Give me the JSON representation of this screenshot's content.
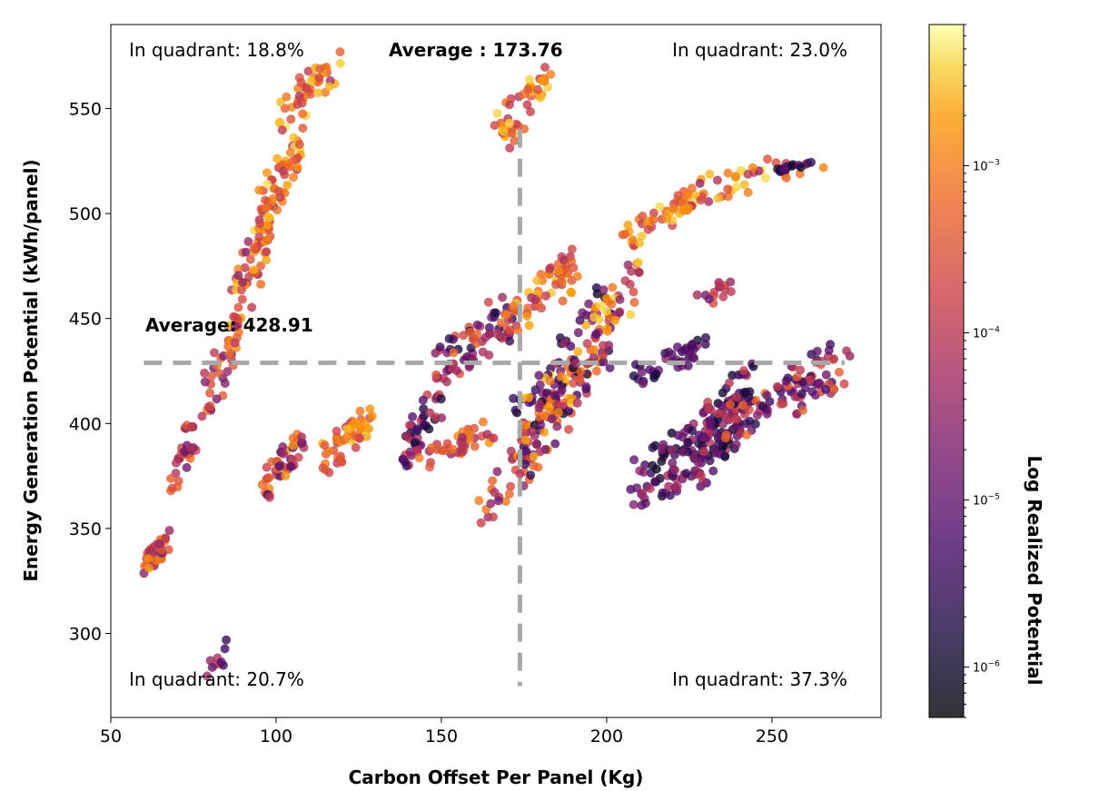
{
  "chart_data": {
    "type": "scatter",
    "xlabel": "Carbon Offset Per Panel (Kg)",
    "ylabel": "Energy Generation Potential (kWh/panel)",
    "colorbar_label": "Log Realized Potential",
    "colormap": "inferno",
    "colorbar_scale": "log",
    "xlim": [
      50,
      283
    ],
    "ylim": [
      260,
      590
    ],
    "xticks": [
      50,
      100,
      150,
      200,
      250
    ],
    "yticks": [
      300,
      350,
      400,
      450,
      500,
      550
    ],
    "colorbar_ticks": [
      {
        "base": "10",
        "exp": "−6",
        "value": 1e-06
      },
      {
        "base": "10",
        "exp": "−5",
        "value": 1e-05
      },
      {
        "base": "10",
        "exp": "−4",
        "value": 0.0001
      },
      {
        "base": "10",
        "exp": "−3",
        "value": 0.001
      }
    ],
    "colorbar_range": [
      5e-07,
      0.007
    ],
    "average_x": {
      "value": 173.76,
      "label": "Average : 173.76"
    },
    "average_y": {
      "value": 428.91,
      "label": "Average: 428.91"
    },
    "quadrants": {
      "top_left": "In quadrant: 18.8%",
      "top_right": "In quadrant: 23.0%",
      "bottom_left": "In quadrant: 20.7%",
      "bottom_right": "In quadrant: 37.3%"
    },
    "grid": false,
    "clusters": [
      {
        "x": [
          60,
          68
        ],
        "y": [
          328,
          350
        ],
        "cmin": 0.35,
        "cmax": 0.85,
        "n": 45
      },
      {
        "x": [
          68,
          76
        ],
        "y": [
          362,
          408
        ],
        "cmin": 0.3,
        "cmax": 0.75,
        "n": 30
      },
      {
        "x": [
          78,
          88
        ],
        "y": [
          400,
          450
        ],
        "cmin": 0.35,
        "cmax": 0.85,
        "n": 35
      },
      {
        "x": [
          86,
          98
        ],
        "y": [
          440,
          500
        ],
        "cmin": 0.4,
        "cmax": 0.95,
        "n": 60
      },
      {
        "x": [
          96,
          108
        ],
        "y": [
          495,
          540
        ],
        "cmin": 0.55,
        "cmax": 0.98,
        "n": 55
      },
      {
        "x": [
          101,
          118
        ],
        "y": [
          540,
          576
        ],
        "cmin": 0.5,
        "cmax": 0.98,
        "n": 45
      },
      {
        "x": [
          96,
          108
        ],
        "y": [
          366,
          395
        ],
        "cmin": 0.25,
        "cmax": 0.9,
        "n": 45
      },
      {
        "x": [
          113,
          128
        ],
        "y": [
          376,
          405
        ],
        "cmin": 0.55,
        "cmax": 0.95,
        "n": 50
      },
      {
        "x": [
          78,
          87
        ],
        "y": [
          276,
          298
        ],
        "cmin": 0.2,
        "cmax": 0.6,
        "n": 10
      },
      {
        "x": [
          138,
          150
        ],
        "y": [
          378,
          420
        ],
        "cmin": 0.1,
        "cmax": 0.6,
        "n": 45
      },
      {
        "x": [
          145,
          165
        ],
        "y": [
          380,
          400
        ],
        "cmin": 0.45,
        "cmax": 0.85,
        "n": 40
      },
      {
        "x": [
          148,
          172
        ],
        "y": [
          420,
          460
        ],
        "cmin": 0.1,
        "cmax": 0.75,
        "n": 70
      },
      {
        "x": [
          163,
          178
        ],
        "y": [
          350,
          400
        ],
        "cmin": 0.35,
        "cmax": 0.8,
        "n": 30
      },
      {
        "x": [
          167,
          182
        ],
        "y": [
          530,
          570
        ],
        "cmin": 0.55,
        "cmax": 0.95,
        "n": 45
      },
      {
        "x": [
          170,
          190
        ],
        "y": [
          440,
          480
        ],
        "cmin": 0.5,
        "cmax": 0.95,
        "n": 60
      },
      {
        "x": [
          174,
          200
        ],
        "y": [
          380,
          460
        ],
        "cmin": 0.05,
        "cmax": 0.95,
        "n": 170
      },
      {
        "x": [
          195,
          210
        ],
        "y": [
          430,
          480
        ],
        "cmin": 0.4,
        "cmax": 0.95,
        "n": 35
      },
      {
        "x": [
          206,
          226
        ],
        "y": [
          485,
          508
        ],
        "cmin": 0.55,
        "cmax": 0.95,
        "n": 40
      },
      {
        "x": [
          220,
          262
        ],
        "y": [
          505,
          528
        ],
        "cmin": 0.45,
        "cmax": 0.98,
        "n": 45
      },
      {
        "x": [
          252,
          262
        ],
        "y": [
          520,
          525
        ],
        "cmin": 0.05,
        "cmax": 0.3,
        "n": 15
      },
      {
        "x": [
          210,
          230
        ],
        "y": [
          420,
          440
        ],
        "cmin": 0.1,
        "cmax": 0.45,
        "n": 40
      },
      {
        "x": [
          210,
          240
        ],
        "y": [
          360,
          415
        ],
        "cmin": 0.05,
        "cmax": 0.55,
        "n": 120
      },
      {
        "x": [
          225,
          245
        ],
        "y": [
          370,
          430
        ],
        "cmin": 0.05,
        "cmax": 0.6,
        "n": 80
      },
      {
        "x": [
          228,
          238
        ],
        "y": [
          455,
          470
        ],
        "cmin": 0.3,
        "cmax": 0.65,
        "n": 15
      },
      {
        "x": [
          238,
          272
        ],
        "y": [
          395,
          436
        ],
        "cmin": 0.15,
        "cmax": 0.75,
        "n": 90
      }
    ]
  }
}
